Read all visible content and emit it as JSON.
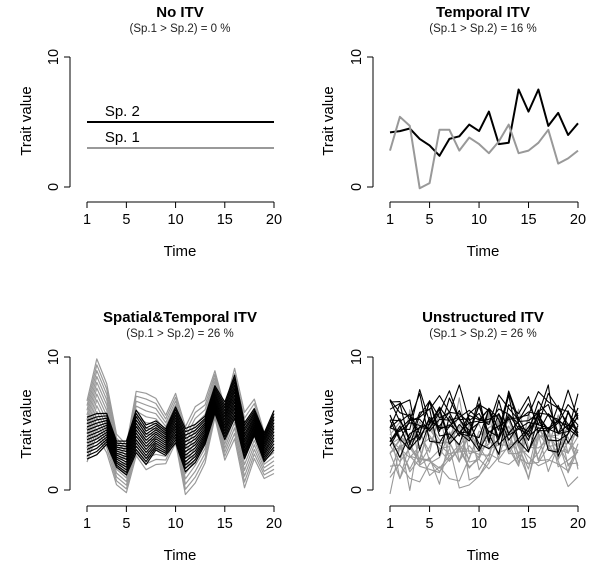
{
  "chart_data": [
    {
      "type": "line",
      "title": "No ITV",
      "subtitle": "(Sp.1 > Sp.2) = 0 %",
      "xlabel": "Time",
      "ylabel": "Trait value",
      "xlim": [
        1,
        20
      ],
      "ylim": [
        0,
        10
      ],
      "xticks": [
        1,
        5,
        10,
        15,
        20
      ],
      "yticks": [
        0,
        10
      ],
      "annotations": [
        {
          "text": "Sp. 2",
          "x": 2,
          "y": 5
        },
        {
          "text": "Sp. 1",
          "x": 2,
          "y": 3
        }
      ],
      "series": [
        {
          "color": "#000000",
          "x": [
            1,
            20
          ],
          "y": [
            5,
            5
          ]
        },
        {
          "color": "#999999",
          "x": [
            1,
            20
          ],
          "y": [
            3,
            3
          ]
        }
      ]
    },
    {
      "type": "line",
      "title": "Temporal ITV",
      "subtitle": "(Sp.1 > Sp.2) = 16 %",
      "xlabel": "Time",
      "ylabel": "Trait value",
      "xlim": [
        1,
        20
      ],
      "ylim": [
        0,
        10
      ],
      "xticks": [
        1,
        5,
        10,
        15,
        20
      ],
      "yticks": [
        0,
        10
      ],
      "series": [
        {
          "color": "#000000",
          "x": [
            1,
            2,
            3,
            4,
            5,
            6,
            7,
            8,
            9,
            10,
            11,
            12,
            13,
            14,
            15,
            16,
            17,
            18,
            19,
            20
          ],
          "y": [
            4.2,
            4.3,
            4.5,
            3.7,
            3.2,
            2.4,
            3.7,
            3.9,
            4.8,
            4.3,
            5.8,
            3.3,
            3.4,
            7.5,
            5.8,
            7.5,
            4.7,
            5.7,
            4.0,
            4.9
          ]
        },
        {
          "color": "#999999",
          "x": [
            1,
            2,
            3,
            4,
            5,
            6,
            7,
            8,
            9,
            10,
            11,
            12,
            13,
            14,
            15,
            16,
            17,
            18,
            19,
            20
          ],
          "y": [
            2.8,
            5.4,
            4.7,
            -0.1,
            0.3,
            4.4,
            4.4,
            2.8,
            3.8,
            3.3,
            2.6,
            3.5,
            4.8,
            2.6,
            2.8,
            3.4,
            4.4,
            1.8,
            2.2,
            2.8
          ]
        }
      ]
    },
    {
      "type": "line",
      "title": "Spatial&Temporal ITV",
      "subtitle": "(Sp.1 > Sp.2) = 26 %",
      "xlabel": "Time",
      "ylabel": "Trait value",
      "xlim": [
        1,
        20
      ],
      "ylim": [
        0,
        10
      ],
      "xticks": [
        1,
        5,
        10,
        15,
        20
      ],
      "yticks": [
        0,
        10
      ],
      "panel_kind": "offset_bundle",
      "bundles": [
        {
          "color": "#999999",
          "count": 14,
          "spread": 4.6,
          "center": [
            4.4,
            7.0,
            5.4,
            2.3,
            1.6,
            5.0,
            4.4,
            4.4,
            3.8,
            5.4,
            2.2,
            3.4,
            4.4,
            7.2,
            4.2,
            6.5,
            3.0,
            4.6,
            2.6,
            3.3
          ]
        },
        {
          "color": "#000000",
          "count": 14,
          "spread": 2.6,
          "center": [
            3.9,
            4.2,
            4.6,
            2.7,
            2.4,
            4.4,
            3.4,
            4.1,
            3.6,
            4.9,
            3.0,
            3.5,
            4.5,
            6.8,
            5.2,
            7.0,
            3.7,
            5.1,
            3.2,
            4.5
          ]
        }
      ]
    },
    {
      "type": "line",
      "title": "Unstructured ITV",
      "subtitle": "(Sp.1 > Sp.2) = 26 %",
      "xlabel": "Time",
      "ylabel": "Trait value",
      "xlim": [
        1,
        20
      ],
      "ylim": [
        0,
        10
      ],
      "xticks": [
        1,
        5,
        10,
        15,
        20
      ],
      "yticks": [
        0,
        10
      ],
      "panel_kind": "random_bundle",
      "bundles": [
        {
          "color": "#999999",
          "count": 14,
          "mean": 3.0,
          "sd": 2.2,
          "seed": 11
        },
        {
          "color": "#000000",
          "count": 14,
          "mean": 5.0,
          "sd": 1.8,
          "seed": 37
        }
      ]
    }
  ]
}
